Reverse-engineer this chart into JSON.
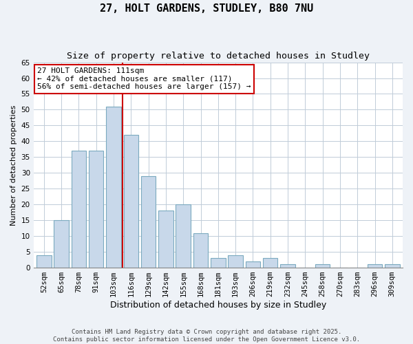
{
  "title": "27, HOLT GARDENS, STUDLEY, B80 7NU",
  "subtitle": "Size of property relative to detached houses in Studley",
  "xlabel": "Distribution of detached houses by size in Studley",
  "ylabel": "Number of detached properties",
  "categories": [
    "52sqm",
    "65sqm",
    "78sqm",
    "91sqm",
    "103sqm",
    "116sqm",
    "129sqm",
    "142sqm",
    "155sqm",
    "168sqm",
    "181sqm",
    "193sqm",
    "206sqm",
    "219sqm",
    "232sqm",
    "245sqm",
    "258sqm",
    "270sqm",
    "283sqm",
    "296sqm",
    "309sqm"
  ],
  "values": [
    4,
    15,
    37,
    37,
    51,
    42,
    29,
    18,
    20,
    11,
    3,
    4,
    2,
    3,
    1,
    0,
    1,
    0,
    0,
    1,
    1
  ],
  "bar_color": "#c8d8ea",
  "bar_edge_color": "#7baabf",
  "ylim": [
    0,
    65
  ],
  "yticks": [
    0,
    5,
    10,
    15,
    20,
    25,
    30,
    35,
    40,
    45,
    50,
    55,
    60,
    65
  ],
  "vline_color": "#cc0000",
  "vline_x": 4.5,
  "annotation_title": "27 HOLT GARDENS: 111sqm",
  "annotation_line1": "← 42% of detached houses are smaller (117)",
  "annotation_line2": "56% of semi-detached houses are larger (157) →",
  "annotation_box_color": "#ffffff",
  "annotation_box_edge_color": "#cc0000",
  "footer1": "Contains HM Land Registry data © Crown copyright and database right 2025.",
  "footer2": "Contains public sector information licensed under the Open Government Licence v3.0.",
  "bg_color": "#eef2f7",
  "plot_bg_color": "#ffffff",
  "grid_color": "#c0ccd8",
  "title_fontsize": 11,
  "subtitle_fontsize": 9.5,
  "xlabel_fontsize": 9,
  "ylabel_fontsize": 8,
  "tick_fontsize": 7.5,
  "annotation_fontsize": 8,
  "footer_fontsize": 6.5
}
